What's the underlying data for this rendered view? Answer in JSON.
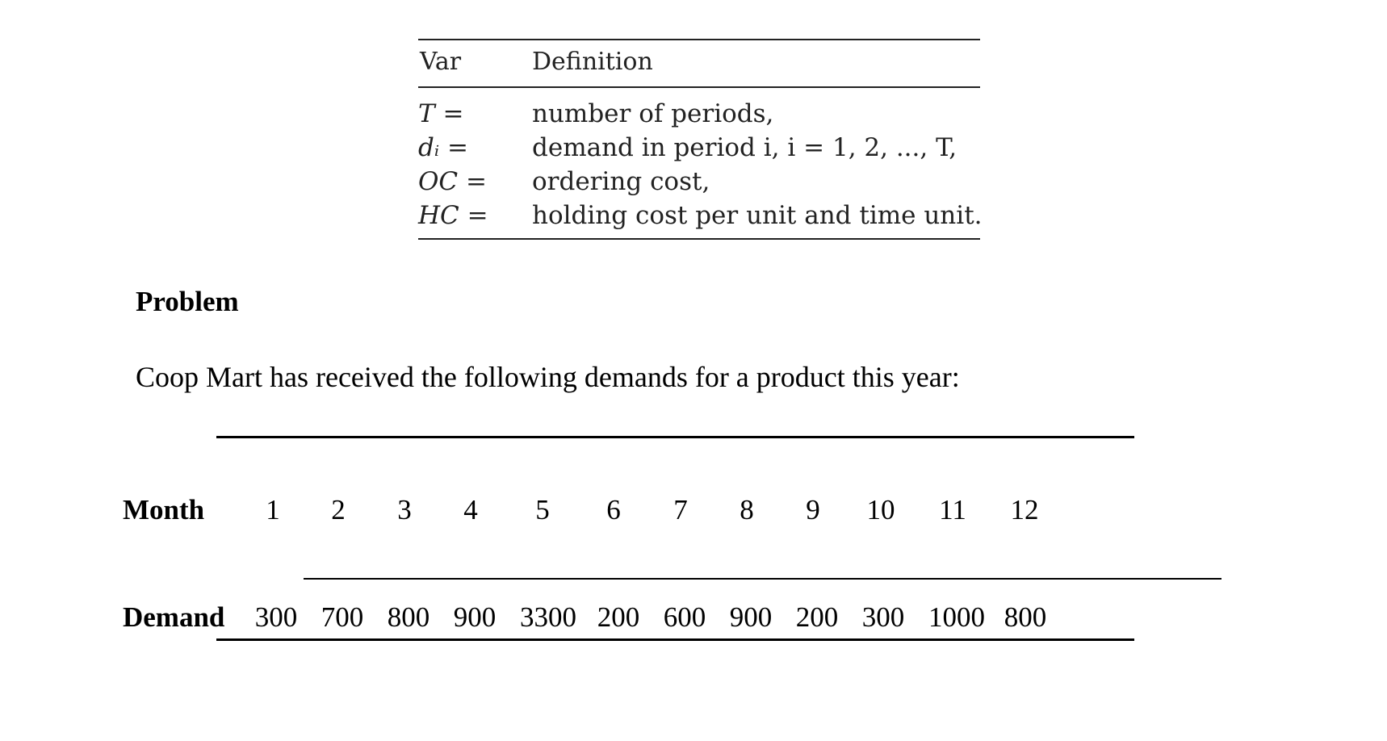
{
  "variables_table": {
    "headers": {
      "var": "Var",
      "definition": "Definition"
    },
    "rows": [
      {
        "symbol": "T",
        "eq": " =",
        "definition": "number of periods,"
      },
      {
        "symbol": "dᵢ",
        "eq": " =",
        "definition": "demand in period i, i = 1, 2, ..., T,"
      },
      {
        "symbol": "OC",
        "eq": " =",
        "definition": "ordering cost,"
      },
      {
        "symbol": "HC",
        "eq": " =",
        "definition": "holding cost per unit and time unit."
      }
    ]
  },
  "problem": {
    "heading": "Problem",
    "text": "Coop Mart has received the following demands for a product this year:"
  },
  "demand_table": {
    "month_label": "Month",
    "demand_label": "Demand",
    "months": [
      "1",
      "2",
      "3",
      "4",
      "5",
      "6",
      "7",
      "8",
      "9",
      "10",
      "11",
      "12"
    ],
    "demands": [
      "300",
      "700",
      "800",
      "900",
      "3300",
      "200",
      "600",
      "900",
      "200",
      "300",
      "1000",
      "800"
    ]
  }
}
